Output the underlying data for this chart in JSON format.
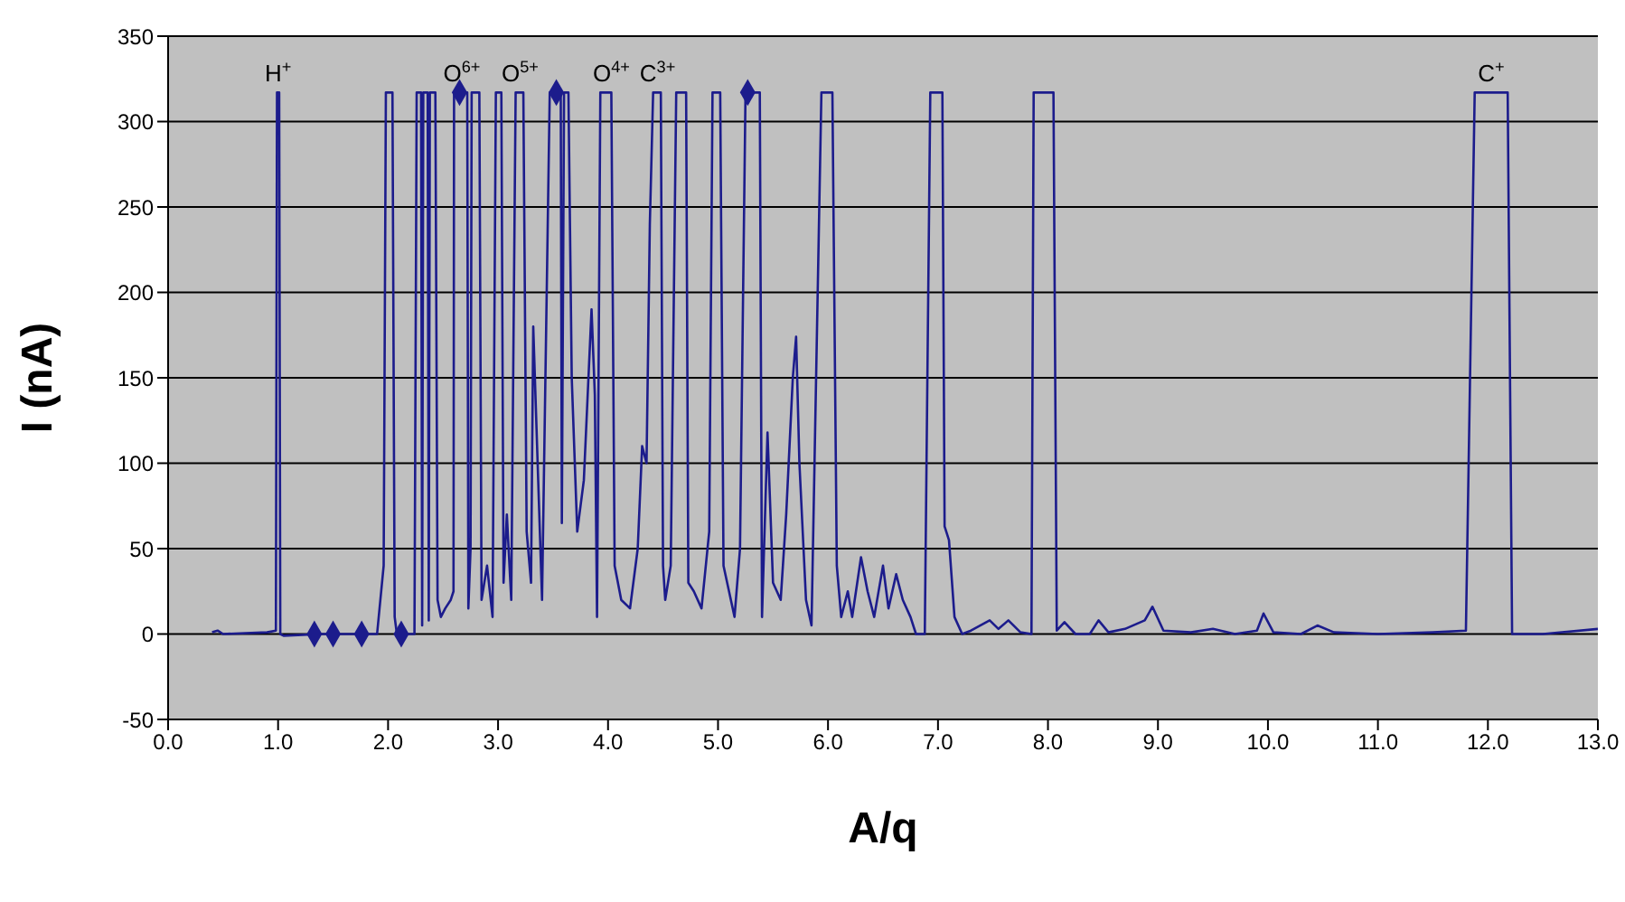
{
  "chart_data": {
    "type": "line",
    "xlabel": "A/q",
    "ylabel": "I (nA)",
    "xlim": [
      0,
      13
    ],
    "ylim": [
      -50,
      350
    ],
    "xticks": [
      {
        "value": 0,
        "label": "0.0"
      },
      {
        "value": 1,
        "label": "1.0"
      },
      {
        "value": 2,
        "label": "2.0"
      },
      {
        "value": 3,
        "label": "3.0"
      },
      {
        "value": 4,
        "label": "4.0"
      },
      {
        "value": 5,
        "label": "5.0"
      },
      {
        "value": 6,
        "label": "6.0"
      },
      {
        "value": 7,
        "label": "7.0"
      },
      {
        "value": 8,
        "label": "8.0"
      },
      {
        "value": 9,
        "label": "9.0"
      },
      {
        "value": 10,
        "label": "10.0"
      },
      {
        "value": 11,
        "label": "11.0"
      },
      {
        "value": 12,
        "label": "12.0"
      },
      {
        "value": 13,
        "label": "13.0"
      }
    ],
    "yticks": [
      -50,
      0,
      50,
      100,
      150,
      200,
      250,
      300,
      350
    ],
    "grid": "y",
    "legend": false,
    "series": [
      {
        "color": "#1c1c8c",
        "marker": "none",
        "x": [
          0.4,
          0.45,
          0.5,
          0.9,
          0.98,
          0.99,
          1.01,
          1.02,
          1.05,
          1.4,
          1.9,
          1.96,
          1.98,
          2.04,
          2.06,
          2.08,
          2.24,
          2.26,
          2.3,
          2.31,
          2.32,
          2.36,
          2.37,
          2.38,
          2.43,
          2.45,
          2.48,
          2.52,
          2.57,
          2.595,
          2.6,
          2.72,
          2.73,
          2.75,
          2.76,
          2.83,
          2.85,
          2.9,
          2.95,
          2.98,
          3.03,
          3.05,
          3.08,
          3.12,
          3.16,
          3.23,
          3.26,
          3.3,
          3.32,
          3.35,
          3.4,
          3.47,
          3.57,
          3.58,
          3.6,
          3.64,
          3.67,
          3.72,
          3.78,
          3.85,
          3.88,
          3.9,
          3.93,
          4.03,
          4.06,
          4.12,
          4.2,
          4.27,
          4.31,
          4.35,
          4.38,
          4.41,
          4.48,
          4.5,
          4.52,
          4.57,
          4.62,
          4.71,
          4.73,
          4.78,
          4.85,
          4.92,
          4.95,
          5.02,
          5.05,
          5.1,
          5.15,
          5.2,
          5.25,
          5.38,
          5.4,
          5.45,
          5.5,
          5.57,
          5.62,
          5.68,
          5.71,
          5.74,
          5.8,
          5.85,
          5.94,
          6.04,
          6.08,
          6.12,
          6.18,
          6.22,
          6.3,
          6.36,
          6.42,
          6.5,
          6.55,
          6.62,
          6.68,
          6.75,
          6.8,
          6.88,
          6.93,
          7.04,
          7.06,
          7.1,
          7.15,
          7.22,
          7.3,
          7.47,
          7.55,
          7.64,
          7.75,
          7.85,
          7.87,
          8.05,
          8.08,
          8.15,
          8.25,
          8.38,
          8.46,
          8.55,
          8.7,
          8.88,
          8.95,
          9.05,
          9.3,
          9.5,
          9.7,
          9.9,
          9.96,
          10.05,
          10.3,
          10.45,
          10.6,
          11.0,
          11.5,
          11.8,
          11.88,
          12.18,
          12.22,
          12.5,
          13.0
        ],
        "values": [
          1,
          2,
          0,
          1,
          2,
          317,
          317,
          0,
          -1,
          0,
          0,
          40,
          317,
          317,
          10,
          0,
          0,
          317,
          317,
          5,
          317,
          317,
          8,
          317,
          317,
          20,
          10,
          15,
          20,
          25,
          317,
          317,
          15,
          50,
          317,
          317,
          20,
          40,
          10,
          317,
          317,
          30,
          70,
          20,
          317,
          317,
          60,
          30,
          180,
          120,
          20,
          317,
          317,
          65,
          317,
          317,
          150,
          60,
          90,
          190,
          140,
          10,
          317,
          317,
          40,
          20,
          15,
          50,
          110,
          100,
          240,
          317,
          317,
          40,
          20,
          40,
          317,
          317,
          30,
          25,
          15,
          60,
          317,
          317,
          40,
          25,
          10,
          50,
          317,
          317,
          10,
          118,
          30,
          20,
          70,
          150,
          174,
          100,
          20,
          5,
          317,
          317,
          40,
          10,
          25,
          10,
          45,
          25,
          10,
          40,
          15,
          35,
          20,
          10,
          0,
          0,
          317,
          317,
          63,
          55,
          10,
          0,
          2,
          8,
          3,
          8,
          1,
          0,
          317,
          317,
          2,
          7,
          0,
          0,
          8,
          1,
          3,
          8,
          16,
          2,
          1,
          3,
          0,
          2,
          12,
          1,
          0,
          5,
          1,
          0,
          1,
          2,
          317,
          317,
          0,
          0,
          3
        ]
      },
      {
        "type": "scatter",
        "color": "#1c1c8c",
        "marker": "diamond",
        "x": [
          1.33,
          1.5,
          1.76,
          2.12,
          2.65,
          3.53,
          5.27
        ],
        "values": [
          0,
          0,
          0,
          0,
          317,
          317,
          317
        ]
      }
    ],
    "annotations": [
      {
        "text": "H$^{+}$",
        "x": 1.0,
        "y": 317
      },
      {
        "text": "O$^{6+}$",
        "x": 2.67,
        "y": 317
      },
      {
        "text": "O$^{5+}$",
        "x": 3.2,
        "y": 317
      },
      {
        "text": "O$^{4+}$",
        "x": 4.03,
        "y": 317
      },
      {
        "text": "C$^{3+}$",
        "x": 4.45,
        "y": 317
      },
      {
        "text": "C$^{+}$",
        "x": 12.03,
        "y": 317
      }
    ]
  }
}
